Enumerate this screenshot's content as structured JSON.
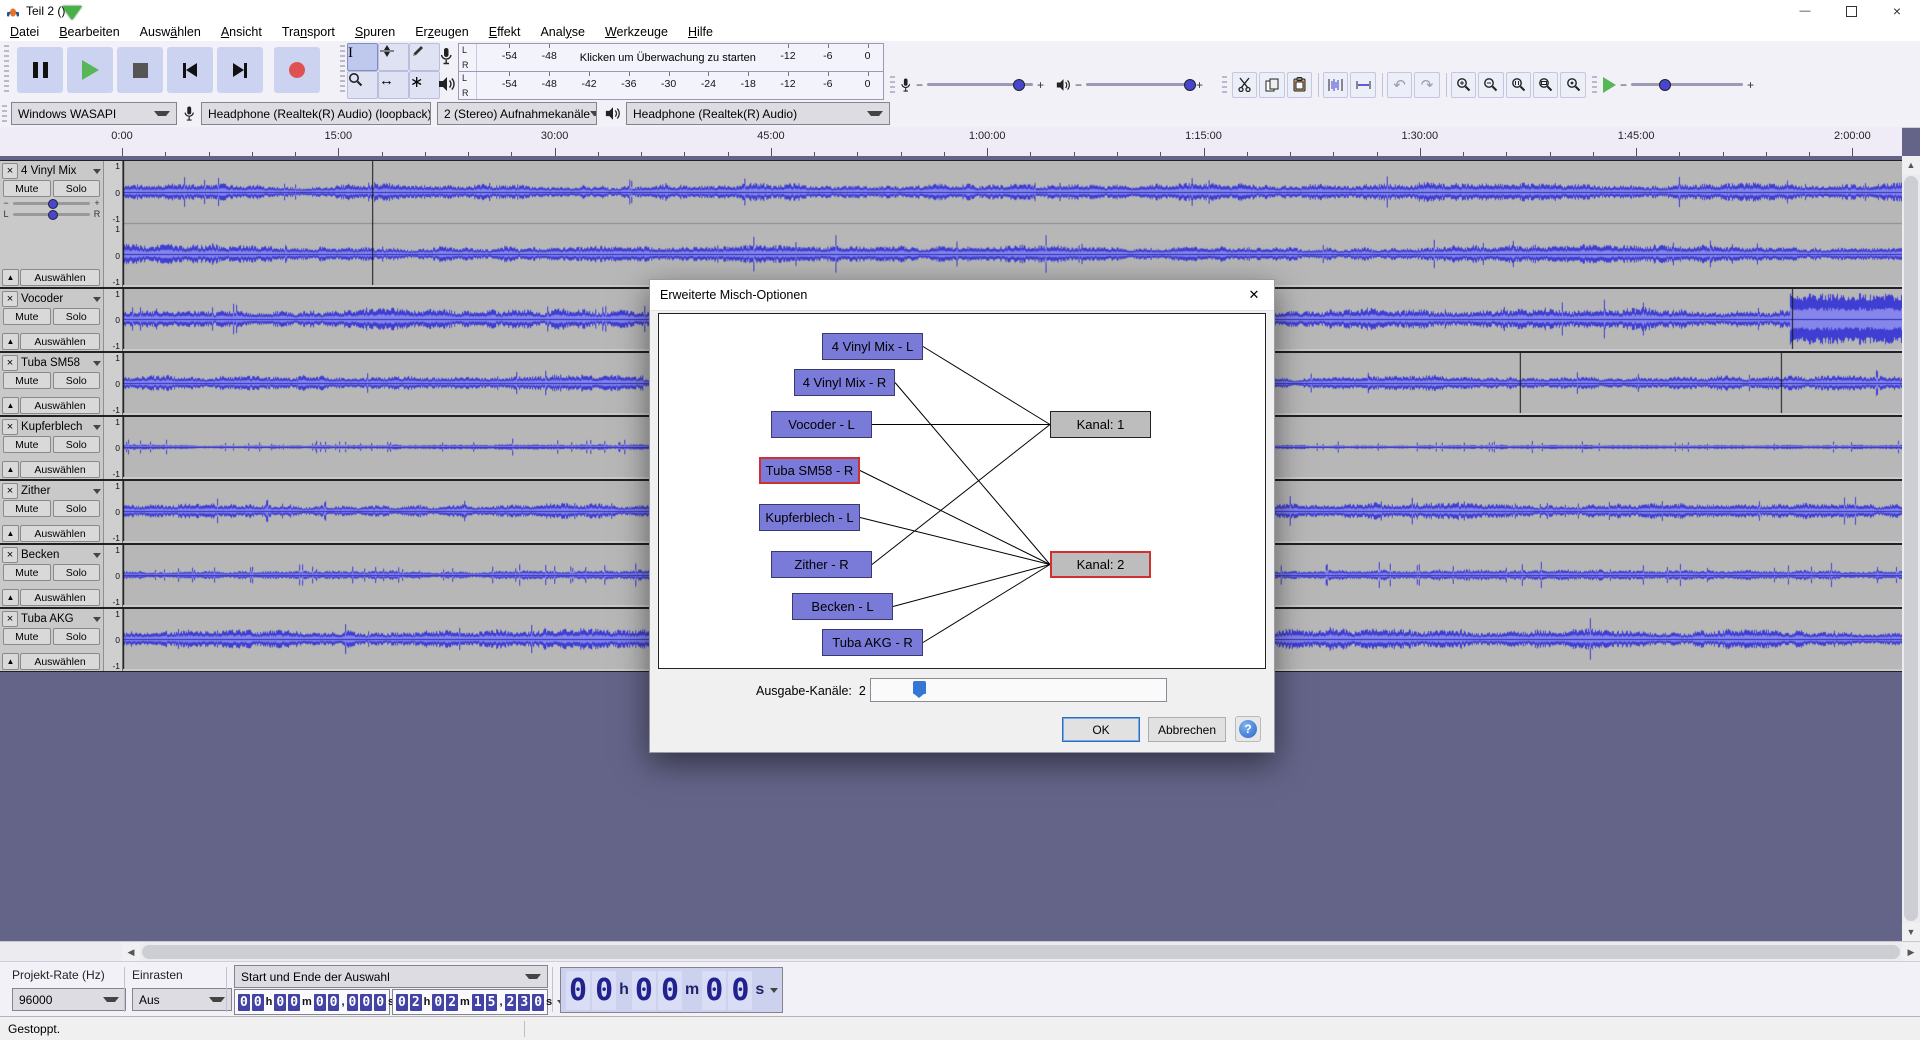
{
  "window": {
    "title": "Teil 2 ()"
  },
  "menu": {
    "items": [
      {
        "label": "Datei",
        "u": 0
      },
      {
        "label": "Bearbeiten",
        "u": 0
      },
      {
        "label": "Auswählen",
        "u": 4
      },
      {
        "label": "Ansicht",
        "u": 0
      },
      {
        "label": "Transport",
        "u": 3
      },
      {
        "label": "Spuren",
        "u": 0
      },
      {
        "label": "Erzeugen",
        "u": 2
      },
      {
        "label": "Effekt",
        "u": 0
      },
      {
        "label": "Analyse",
        "u": 4
      },
      {
        "label": "Werkzeuge",
        "u": 0
      },
      {
        "label": "Hilfe",
        "u": 0
      }
    ]
  },
  "meters": {
    "record": {
      "channels": [
        "L",
        "R"
      ],
      "ticks": [
        "-54",
        "-48",
        "-42",
        "-36",
        "-30",
        "-24",
        "-18",
        "-12",
        "-6",
        "0"
      ],
      "visible_labels": [
        "-54",
        "-48",
        "-12",
        "-6",
        "0"
      ],
      "message": "Klicken um Überwachung zu starten"
    },
    "play": {
      "channels": [
        "L",
        "R"
      ],
      "ticks": [
        "-54",
        "-48",
        "-42",
        "-36",
        "-30",
        "-24",
        "-18",
        "-12",
        "-6",
        "0"
      ]
    }
  },
  "mixer": {
    "minus": "−",
    "plus": "+"
  },
  "device": {
    "host": "Windows WASAPI",
    "recording": "Headphone (Realtek(R) Audio) (loopback)",
    "channels": "2 (Stereo) Aufnahmekanäle",
    "playback": "Headphone (Realtek(R) Audio)"
  },
  "timeline": {
    "labels": [
      "0:00",
      "15:00",
      "30:00",
      "45:00",
      "1:00:00",
      "1:15:00",
      "1:30:00",
      "1:45:00",
      "2:00:00"
    ]
  },
  "track_controls": {
    "mute": "Mute",
    "solo": "Solo",
    "select": "Auswählen",
    "scale": [
      "1",
      "0",
      "-1"
    ],
    "pan_left": "L",
    "pan_right": "R",
    "minus": "−",
    "plus": "+"
  },
  "tracks": [
    {
      "name": "4 Vinyl Mix",
      "stereo": true
    },
    {
      "name": "Vocoder",
      "stereo": false
    },
    {
      "name": "Tuba SM58",
      "stereo": false
    },
    {
      "name": "Kupferblech",
      "stereo": false
    },
    {
      "name": "Zither",
      "stereo": false
    },
    {
      "name": "Becken",
      "stereo": false
    },
    {
      "name": "Tuba AKG",
      "stereo": false
    }
  ],
  "dialog": {
    "title": "Erweiterte Misch-Optionen",
    "sources": [
      {
        "label": "4 Vinyl Mix - L",
        "selected": false
      },
      {
        "label": "4 Vinyl Mix - R",
        "selected": false
      },
      {
        "label": "Vocoder - L",
        "selected": false
      },
      {
        "label": "Tuba SM58 - R",
        "selected": true
      },
      {
        "label": "Kupferblech - L",
        "selected": false
      },
      {
        "label": "Zither - R",
        "selected": false
      },
      {
        "label": "Becken - L",
        "selected": false
      },
      {
        "label": "Tuba AKG - R",
        "selected": false
      }
    ],
    "channels": [
      {
        "label": "Kanal:  1",
        "selected": false
      },
      {
        "label": "Kanal:  2",
        "selected": true
      }
    ],
    "connections": [
      [
        0,
        0
      ],
      [
        1,
        1
      ],
      [
        2,
        0
      ],
      [
        3,
        1
      ],
      [
        4,
        1
      ],
      [
        5,
        0
      ],
      [
        6,
        1
      ],
      [
        7,
        1
      ]
    ],
    "output_label": "Ausgabe-Kanäle:",
    "output_value": "2",
    "ok": "OK",
    "cancel": "Abbrechen",
    "help": "?"
  },
  "selection_bar": {
    "rate_label": "Projekt-Rate (Hz)",
    "rate_value": "96000",
    "snap_label": "Einrasten",
    "snap_value": "Aus",
    "range_mode": "Start und Ende der Auswahl",
    "sel_start": "00h00m00,000s",
    "sel_end": "02h02m15,230s",
    "audio_position": "00h00m00s"
  },
  "status_bar": {
    "text": "Gestoppt."
  }
}
